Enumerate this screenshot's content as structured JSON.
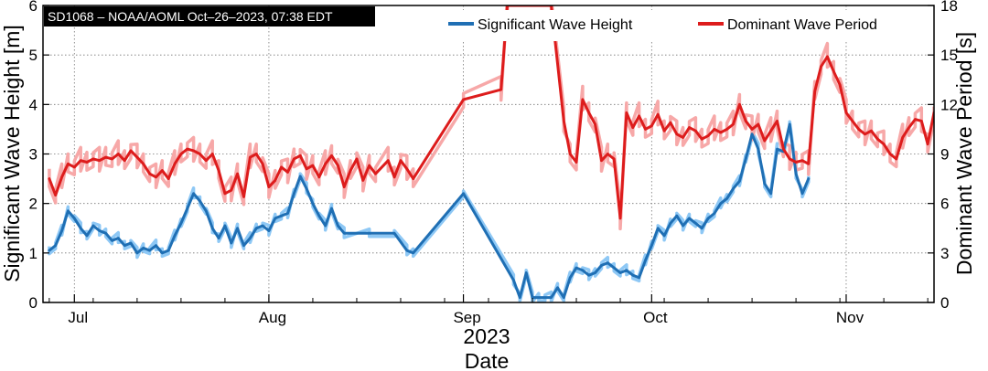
{
  "chart_data": {
    "type": "line",
    "badge": "SD1068  –  NOAA/AOML  Oct–26–2023, 07:38 EDT",
    "xlabel": "Date",
    "xlabel_year": "2023",
    "ylabel": "Significant Wave Height [m]",
    "y2label": "Dominant Wave Period [s]",
    "xlim": [
      "2023-06-26",
      "2023-11-15"
    ],
    "ylim": [
      0,
      6
    ],
    "y2lim": [
      0,
      18
    ],
    "x_ticks": [
      {
        "label": "Jul",
        "date": "2023-07-01"
      },
      {
        "label": "Aug",
        "date": "2023-08-01"
      },
      {
        "label": "Sep",
        "date": "2023-09-01"
      },
      {
        "label": "Oct",
        "date": "2023-10-01"
      },
      {
        "label": "Nov",
        "date": "2023-11-01"
      }
    ],
    "y_ticks": [
      0,
      1,
      2,
      3,
      4,
      5,
      6
    ],
    "y2_ticks": [
      0,
      3,
      6,
      9,
      12,
      15,
      18
    ],
    "grid": true,
    "legend_position": "top-right",
    "colors": {
      "wave_height": "#1f6fb4",
      "wave_height_raw": "#8ec8f5",
      "wave_period": "#dd1c1c",
      "wave_period_raw": "#f7a8a8"
    },
    "series": [
      {
        "name": "Significant Wave Height",
        "axis": "left",
        "points": [
          [
            "2023-06-27",
            1.05
          ],
          [
            "2023-06-28",
            1.15
          ],
          [
            "2023-06-29",
            1.45
          ],
          [
            "2023-06-30",
            1.85
          ],
          [
            "2023-07-01",
            1.7
          ],
          [
            "2023-07-02",
            1.5
          ],
          [
            "2023-07-03",
            1.35
          ],
          [
            "2023-07-04",
            1.55
          ],
          [
            "2023-07-05",
            1.45
          ],
          [
            "2023-07-06",
            1.4
          ],
          [
            "2023-07-07",
            1.25
          ],
          [
            "2023-07-08",
            1.3
          ],
          [
            "2023-07-09",
            1.15
          ],
          [
            "2023-07-10",
            1.2
          ],
          [
            "2023-07-11",
            1.0
          ],
          [
            "2023-07-12",
            1.1
          ],
          [
            "2023-07-13",
            1.05
          ],
          [
            "2023-07-14",
            1.15
          ],
          [
            "2023-07-15",
            1.0
          ],
          [
            "2023-07-16",
            1.05
          ],
          [
            "2023-07-17",
            1.35
          ],
          [
            "2023-07-18",
            1.6
          ],
          [
            "2023-07-19",
            1.9
          ],
          [
            "2023-07-20",
            2.2
          ],
          [
            "2023-07-21",
            2.05
          ],
          [
            "2023-07-22",
            1.85
          ],
          [
            "2023-07-23",
            1.5
          ],
          [
            "2023-07-24",
            1.3
          ],
          [
            "2023-07-25",
            1.55
          ],
          [
            "2023-07-26",
            1.2
          ],
          [
            "2023-07-27",
            1.5
          ],
          [
            "2023-07-28",
            1.15
          ],
          [
            "2023-07-29",
            1.3
          ],
          [
            "2023-07-30",
            1.5
          ],
          [
            "2023-07-31",
            1.55
          ],
          [
            "2023-08-01",
            1.45
          ],
          [
            "2023-08-02",
            1.7
          ],
          [
            "2023-08-03",
            1.75
          ],
          [
            "2023-08-04",
            1.8
          ],
          [
            "2023-08-05",
            2.2
          ],
          [
            "2023-08-06",
            2.55
          ],
          [
            "2023-08-07",
            2.3
          ],
          [
            "2023-08-08",
            2.0
          ],
          [
            "2023-08-09",
            1.75
          ],
          [
            "2023-08-10",
            1.55
          ],
          [
            "2023-08-11",
            1.9
          ],
          [
            "2023-08-12",
            1.55
          ],
          [
            "2023-08-13",
            1.4
          ],
          [
            "2023-08-17",
            1.4
          ],
          [
            "2023-08-21",
            1.4
          ],
          [
            "2023-08-23",
            1.05
          ],
          [
            "2023-08-24",
            1.0
          ],
          [
            "2023-09-01",
            2.2
          ],
          [
            "2023-09-09",
            0.45
          ],
          [
            "2023-09-10",
            0.1
          ],
          [
            "2023-09-11",
            0.6
          ],
          [
            "2023-09-12",
            0.1
          ],
          [
            "2023-09-13",
            0.1
          ],
          [
            "2023-09-14",
            0.1
          ],
          [
            "2023-09-15",
            0.1
          ],
          [
            "2023-09-16",
            0.3
          ],
          [
            "2023-09-17",
            0.1
          ],
          [
            "2023-09-18",
            0.5
          ],
          [
            "2023-09-19",
            0.7
          ],
          [
            "2023-09-20",
            0.65
          ],
          [
            "2023-09-21",
            0.55
          ],
          [
            "2023-09-22",
            0.6
          ],
          [
            "2023-09-23",
            0.75
          ],
          [
            "2023-09-24",
            0.8
          ],
          [
            "2023-09-25",
            0.7
          ],
          [
            "2023-09-26",
            0.6
          ],
          [
            "2023-09-27",
            0.65
          ],
          [
            "2023-09-28",
            0.55
          ],
          [
            "2023-09-29",
            0.5
          ],
          [
            "2023-09-30",
            0.85
          ],
          [
            "2023-10-01",
            1.15
          ],
          [
            "2023-10-02",
            1.5
          ],
          [
            "2023-10-03",
            1.35
          ],
          [
            "2023-10-04",
            1.6
          ],
          [
            "2023-10-05",
            1.75
          ],
          [
            "2023-10-06",
            1.55
          ],
          [
            "2023-10-07",
            1.7
          ],
          [
            "2023-10-08",
            1.6
          ],
          [
            "2023-10-09",
            1.5
          ],
          [
            "2023-10-10",
            1.7
          ],
          [
            "2023-10-11",
            1.8
          ],
          [
            "2023-10-12",
            2.0
          ],
          [
            "2023-10-13",
            2.1
          ],
          [
            "2023-10-14",
            2.3
          ],
          [
            "2023-10-15",
            2.45
          ],
          [
            "2023-10-16",
            2.9
          ],
          [
            "2023-10-17",
            3.4
          ],
          [
            "2023-10-18",
            3.1
          ],
          [
            "2023-10-19",
            2.4
          ],
          [
            "2023-10-20",
            2.2
          ],
          [
            "2023-10-21",
            3.1
          ],
          [
            "2023-10-22",
            3.05
          ],
          [
            "2023-10-23",
            3.6
          ],
          [
            "2023-10-24",
            2.6
          ],
          [
            "2023-10-25",
            2.2
          ],
          [
            "2023-10-26",
            2.5
          ]
        ]
      },
      {
        "name": "Dominant Wave Period",
        "axis": "right",
        "points": [
          [
            "2023-06-27",
            7.5
          ],
          [
            "2023-06-28",
            6.5
          ],
          [
            "2023-06-29",
            7.6
          ],
          [
            "2023-06-30",
            8.4
          ],
          [
            "2023-07-01",
            8.2
          ],
          [
            "2023-07-02",
            8.6
          ],
          [
            "2023-07-03",
            8.5
          ],
          [
            "2023-07-04",
            8.7
          ],
          [
            "2023-07-05",
            8.6
          ],
          [
            "2023-07-06",
            8.8
          ],
          [
            "2023-07-07",
            8.7
          ],
          [
            "2023-07-08",
            9.0
          ],
          [
            "2023-07-09",
            8.6
          ],
          [
            "2023-07-10",
            9.2
          ],
          [
            "2023-07-11",
            8.8
          ],
          [
            "2023-07-12",
            8.4
          ],
          [
            "2023-07-13",
            7.8
          ],
          [
            "2023-07-14",
            7.6
          ],
          [
            "2023-07-15",
            8.0
          ],
          [
            "2023-07-16",
            7.5
          ],
          [
            "2023-07-17",
            8.4
          ],
          [
            "2023-07-18",
            9.0
          ],
          [
            "2023-07-19",
            9.3
          ],
          [
            "2023-07-20",
            9.2
          ],
          [
            "2023-07-21",
            9.0
          ],
          [
            "2023-07-22",
            8.6
          ],
          [
            "2023-07-23",
            9.0
          ],
          [
            "2023-07-24",
            8.0
          ],
          [
            "2023-07-25",
            6.6
          ],
          [
            "2023-07-26",
            6.8
          ],
          [
            "2023-07-27",
            7.8
          ],
          [
            "2023-07-28",
            6.4
          ],
          [
            "2023-07-29",
            8.8
          ],
          [
            "2023-07-30",
            9.0
          ],
          [
            "2023-07-31",
            8.4
          ],
          [
            "2023-08-01",
            7.0
          ],
          [
            "2023-08-02",
            7.4
          ],
          [
            "2023-08-03",
            8.2
          ],
          [
            "2023-08-04",
            7.9
          ],
          [
            "2023-08-05",
            8.7
          ],
          [
            "2023-08-06",
            8.9
          ],
          [
            "2023-08-07",
            8.1
          ],
          [
            "2023-08-08",
            8.3
          ],
          [
            "2023-08-09",
            7.6
          ],
          [
            "2023-08-10",
            8.4
          ],
          [
            "2023-08-11",
            8.9
          ],
          [
            "2023-08-12",
            8.3
          ],
          [
            "2023-08-13",
            7.0
          ],
          [
            "2023-08-14",
            8.0
          ],
          [
            "2023-08-15",
            8.7
          ],
          [
            "2023-08-16",
            7.4
          ],
          [
            "2023-08-17",
            8.3
          ],
          [
            "2023-08-18",
            7.8
          ],
          [
            "2023-08-20",
            8.6
          ],
          [
            "2023-08-21",
            7.6
          ],
          [
            "2023-08-22",
            8.6
          ],
          [
            "2023-08-23",
            8.1
          ],
          [
            "2023-08-24",
            7.5
          ],
          [
            "2023-09-01",
            12.3
          ],
          [
            "2023-09-07",
            12.9
          ],
          [
            "2023-09-08",
            18.0
          ],
          [
            "2023-09-15",
            18.0
          ],
          [
            "2023-09-17",
            11.0
          ],
          [
            "2023-09-18",
            9.0
          ],
          [
            "2023-09-19",
            8.5
          ],
          [
            "2023-09-20",
            12.3
          ],
          [
            "2023-09-21",
            11.5
          ],
          [
            "2023-09-22",
            10.8
          ],
          [
            "2023-09-23",
            8.6
          ],
          [
            "2023-09-24",
            9.0
          ],
          [
            "2023-09-25",
            8.7
          ],
          [
            "2023-09-26",
            5.1
          ],
          [
            "2023-09-27",
            11.5
          ],
          [
            "2023-09-28",
            10.6
          ],
          [
            "2023-09-29",
            11.3
          ],
          [
            "2023-09-30",
            10.5
          ],
          [
            "2023-10-01",
            10.7
          ],
          [
            "2023-10-02",
            11.4
          ],
          [
            "2023-10-03",
            10.4
          ],
          [
            "2023-10-04",
            10.9
          ],
          [
            "2023-10-05",
            10.2
          ],
          [
            "2023-10-06",
            10.0
          ],
          [
            "2023-10-07",
            10.6
          ],
          [
            "2023-10-08",
            10.4
          ],
          [
            "2023-10-09",
            9.9
          ],
          [
            "2023-10-10",
            10.1
          ],
          [
            "2023-10-11",
            10.5
          ],
          [
            "2023-10-12",
            10.3
          ],
          [
            "2023-10-13",
            10.5
          ],
          [
            "2023-10-14",
            10.8
          ],
          [
            "2023-10-15",
            12.0
          ],
          [
            "2023-10-16",
            11.0
          ],
          [
            "2023-10-17",
            10.5
          ],
          [
            "2023-10-18",
            10.8
          ],
          [
            "2023-10-19",
            9.8
          ],
          [
            "2023-10-20",
            10.4
          ],
          [
            "2023-10-21",
            11.0
          ],
          [
            "2023-10-22",
            9.3
          ],
          [
            "2023-10-23",
            8.7
          ],
          [
            "2023-10-24",
            8.5
          ],
          [
            "2023-10-25",
            8.6
          ],
          [
            "2023-10-26",
            8.4
          ],
          [
            "2023-10-27",
            12.8
          ],
          [
            "2023-10-28",
            14.3
          ],
          [
            "2023-10-29",
            14.9
          ],
          [
            "2023-10-30",
            14.0
          ],
          [
            "2023-10-31",
            13.2
          ],
          [
            "2023-11-01",
            11.5
          ],
          [
            "2023-11-02",
            11.0
          ],
          [
            "2023-11-03",
            10.5
          ],
          [
            "2023-11-04",
            10.2
          ],
          [
            "2023-11-05",
            10.4
          ],
          [
            "2023-11-06",
            9.9
          ],
          [
            "2023-11-07",
            9.6
          ],
          [
            "2023-11-08",
            9.0
          ],
          [
            "2023-11-09",
            8.7
          ],
          [
            "2023-11-10",
            10.0
          ],
          [
            "2023-11-11",
            10.6
          ],
          [
            "2023-11-12",
            11.1
          ],
          [
            "2023-11-13",
            11.0
          ],
          [
            "2023-11-14",
            9.6
          ],
          [
            "2023-11-15",
            11.5
          ]
        ]
      }
    ]
  }
}
